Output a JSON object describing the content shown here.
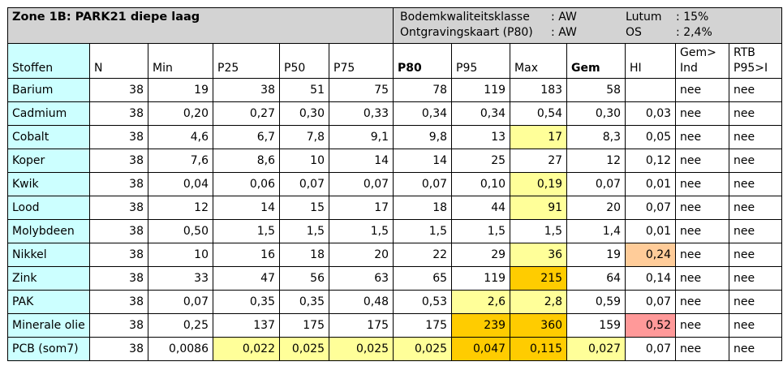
{
  "header": {
    "zone_title": "Zone 1B: PARK21 diepe laag",
    "info": [
      {
        "label": "Bodemkwaliteitsklasse",
        "value": ": AW",
        "label2": "Lutum",
        "value2": ": 15%"
      },
      {
        "label": "Ontgravingskaart (P80)",
        "value": ": AW",
        "label2": "OS",
        "value2": ": 2,4%"
      }
    ]
  },
  "columns": [
    {
      "key": "stoffen",
      "label": "Stoffen",
      "bold": false
    },
    {
      "key": "n",
      "label": "N",
      "bold": false
    },
    {
      "key": "min",
      "label": "Min",
      "bold": false
    },
    {
      "key": "p25",
      "label": "P25",
      "bold": false
    },
    {
      "key": "p50",
      "label": "P50",
      "bold": false
    },
    {
      "key": "p75",
      "label": "P75",
      "bold": false
    },
    {
      "key": "p80",
      "label": "P80",
      "bold": true
    },
    {
      "key": "p95",
      "label": "P95",
      "bold": false
    },
    {
      "key": "max",
      "label": "Max",
      "bold": false
    },
    {
      "key": "gem",
      "label": "Gem",
      "bold": true
    },
    {
      "key": "hi",
      "label": "HI",
      "bold": false
    },
    {
      "key": "gemind",
      "label": "Gem>",
      "label2": "Ind",
      "bold": false
    },
    {
      "key": "rtb",
      "label": "RTB",
      "label2": "P95>I",
      "bold": false
    }
  ],
  "highlight_colors": {
    "yellow": "#ffff99",
    "orange": "#ffcc00",
    "peach": "#ffcc99",
    "pink": "#ff9999",
    "cyan": "#ccffff",
    "header_grey": "#d3d3d3"
  },
  "rows": [
    {
      "name": "Barium",
      "cells": [
        "38",
        "19",
        "38",
        "51",
        "75",
        "78",
        "119",
        "183",
        "58",
        "",
        "nee",
        "nee"
      ],
      "hl": [
        "",
        "",
        "",
        "",
        "",
        "",
        "",
        "",
        "",
        "",
        "",
        ""
      ]
    },
    {
      "name": "Cadmium",
      "cells": [
        "38",
        "0,20",
        "0,27",
        "0,30",
        "0,33",
        "0,34",
        "0,34",
        "0,54",
        "0,30",
        "0,03",
        "nee",
        "nee"
      ],
      "hl": [
        "",
        "",
        "",
        "",
        "",
        "",
        "",
        "",
        "",
        "",
        "",
        ""
      ]
    },
    {
      "name": "Cobalt",
      "cells": [
        "38",
        "4,6",
        "6,7",
        "7,8",
        "9,1",
        "9,8",
        "13",
        "17",
        "8,3",
        "0,05",
        "nee",
        "nee"
      ],
      "hl": [
        "",
        "",
        "",
        "",
        "",
        "",
        "",
        "hl1",
        "",
        "",
        "",
        ""
      ]
    },
    {
      "name": "Koper",
      "cells": [
        "38",
        "7,6",
        "8,6",
        "10",
        "14",
        "14",
        "25",
        "27",
        "12",
        "0,12",
        "nee",
        "nee"
      ],
      "hl": [
        "",
        "",
        "",
        "",
        "",
        "",
        "",
        "",
        "",
        "",
        "",
        ""
      ]
    },
    {
      "name": "Kwik",
      "cells": [
        "38",
        "0,04",
        "0,06",
        "0,07",
        "0,07",
        "0,07",
        "0,10",
        "0,19",
        "0,07",
        "0,01",
        "nee",
        "nee"
      ],
      "hl": [
        "",
        "",
        "",
        "",
        "",
        "",
        "",
        "hl1",
        "",
        "",
        "",
        ""
      ]
    },
    {
      "name": "Lood",
      "cells": [
        "38",
        "12",
        "14",
        "15",
        "17",
        "18",
        "44",
        "91",
        "20",
        "0,07",
        "nee",
        "nee"
      ],
      "hl": [
        "",
        "",
        "",
        "",
        "",
        "",
        "",
        "hl1",
        "",
        "",
        "",
        ""
      ]
    },
    {
      "name": "Molybdeen",
      "cells": [
        "38",
        "0,50",
        "1,5",
        "1,5",
        "1,5",
        "1,5",
        "1,5",
        "1,5",
        "1,4",
        "0,01",
        "nee",
        "nee"
      ],
      "hl": [
        "",
        "",
        "",
        "",
        "",
        "",
        "",
        "",
        "",
        "",
        "",
        ""
      ]
    },
    {
      "name": "Nikkel",
      "cells": [
        "38",
        "10",
        "16",
        "18",
        "20",
        "22",
        "29",
        "36",
        "19",
        "0,24",
        "nee",
        "nee"
      ],
      "hl": [
        "",
        "",
        "",
        "",
        "",
        "",
        "",
        "hl1",
        "",
        "hl3",
        "",
        ""
      ]
    },
    {
      "name": "Zink",
      "cells": [
        "38",
        "33",
        "47",
        "56",
        "63",
        "65",
        "119",
        "215",
        "64",
        "0,14",
        "nee",
        "nee"
      ],
      "hl": [
        "",
        "",
        "",
        "",
        "",
        "",
        "",
        "hl2",
        "",
        "",
        "",
        ""
      ]
    },
    {
      "name": "PAK",
      "cells": [
        "38",
        "0,07",
        "0,35",
        "0,35",
        "0,48",
        "0,53",
        "2,6",
        "2,8",
        "0,59",
        "0,07",
        "nee",
        "nee"
      ],
      "hl": [
        "",
        "",
        "",
        "",
        "",
        "",
        "hl1",
        "hl1",
        "",
        "",
        "",
        ""
      ]
    },
    {
      "name": "Minerale olie",
      "cells": [
        "38",
        "0,25",
        "137",
        "175",
        "175",
        "175",
        "239",
        "360",
        "159",
        "0,52",
        "nee",
        "nee"
      ],
      "hl": [
        "",
        "",
        "",
        "",
        "",
        "",
        "hl2",
        "hl2",
        "",
        "hl4",
        "",
        ""
      ]
    },
    {
      "name": "PCB (som7)",
      "cells": [
        "38",
        "0,0086",
        "0,022",
        "0,025",
        "0,025",
        "0,025",
        "0,047",
        "0,115",
        "0,027",
        "0,07",
        "nee",
        "nee"
      ],
      "hl": [
        "",
        "",
        "hl1",
        "hl1",
        "hl1",
        "hl1",
        "hl2",
        "hl2",
        "hl1",
        "",
        "",
        ""
      ]
    }
  ]
}
